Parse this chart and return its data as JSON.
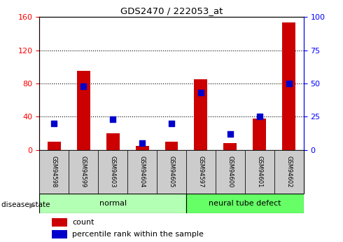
{
  "title": "GDS2470 / 222053_at",
  "samples": [
    "GSM94598",
    "GSM94599",
    "GSM94603",
    "GSM94604",
    "GSM94605",
    "GSM94597",
    "GSM94600",
    "GSM94601",
    "GSM94602"
  ],
  "count_values": [
    10,
    95,
    20,
    5,
    10,
    85,
    8,
    38,
    153
  ],
  "percentile_values": [
    20,
    48,
    23,
    5,
    20,
    43,
    12,
    25,
    50
  ],
  "disease_state": [
    "normal",
    "normal",
    "normal",
    "normal",
    "normal",
    "neural tube defect",
    "neural tube defect",
    "neural tube defect",
    "neural tube defect"
  ],
  "normal_color": "#b3ffb3",
  "defect_color": "#66ff66",
  "bar_color": "#cc0000",
  "dot_color": "#0000cc",
  "left_ylim": [
    0,
    160
  ],
  "right_ylim": [
    0,
    100
  ],
  "left_yticks": [
    0,
    40,
    80,
    120,
    160
  ],
  "right_yticks": [
    0,
    25,
    50,
    75,
    100
  ],
  "tick_bg_color": "#cccccc",
  "disease_state_label": "disease state",
  "legend_count": "count",
  "legend_percentile": "percentile rank within the sample"
}
